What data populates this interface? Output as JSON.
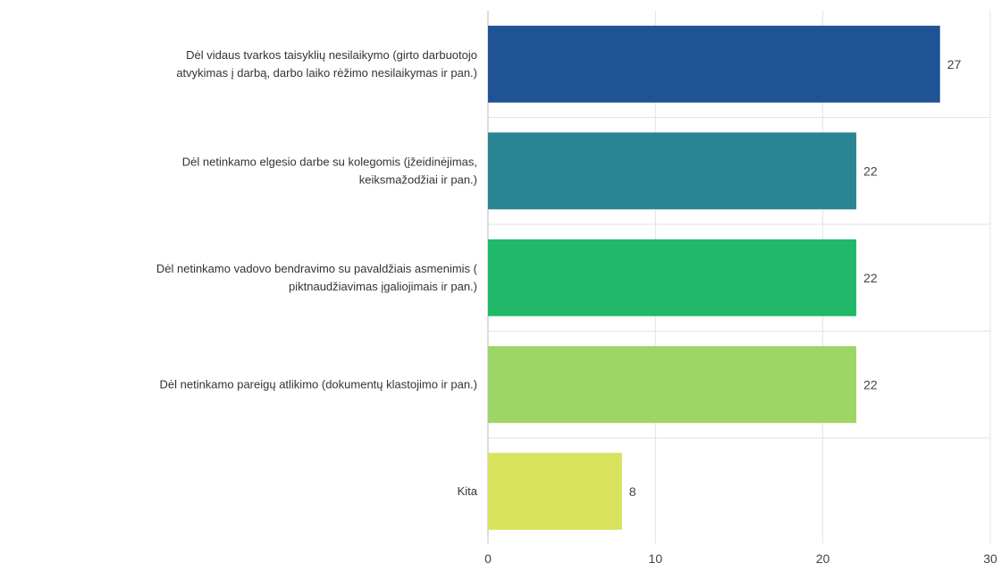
{
  "chart_data": {
    "type": "bar",
    "orientation": "horizontal",
    "title": "",
    "xlabel": "",
    "ylabel": "",
    "xlim": [
      0,
      30
    ],
    "ticks": [
      0,
      10,
      20,
      30
    ],
    "grid": true,
    "categories": [
      {
        "lines": [
          "Dėl vidaus tvarkos taisyklių nesilaikymo (girto darbuotojo",
          "atvykimas į darbą, darbo laiko rėžimo nesilaikymas ir pan.)"
        ],
        "value": 27,
        "color": "#1f5394"
      },
      {
        "lines": [
          "Dėl netinkamo elgesio darbe su kolegomis (įžeidinėjimas,",
          "keiksmažodžiai ir pan.)"
        ],
        "value": 22,
        "color": "#2a8593"
      },
      {
        "lines": [
          "Dėl netinkamo vadovo bendravimo su pavaldžiais asmenimis (",
          "piktnaudžiavimas įgaliojimais ir pan.)"
        ],
        "value": 22,
        "color": "#21b86a"
      },
      {
        "lines": [
          "Dėl netinkamo pareigų atlikimo (dokumentų klastojimo ir pan.)"
        ],
        "value": 22,
        "color": "#9dd566"
      },
      {
        "lines": [
          "Kita"
        ],
        "value": 8,
        "color": "#d9e25c"
      }
    ]
  }
}
